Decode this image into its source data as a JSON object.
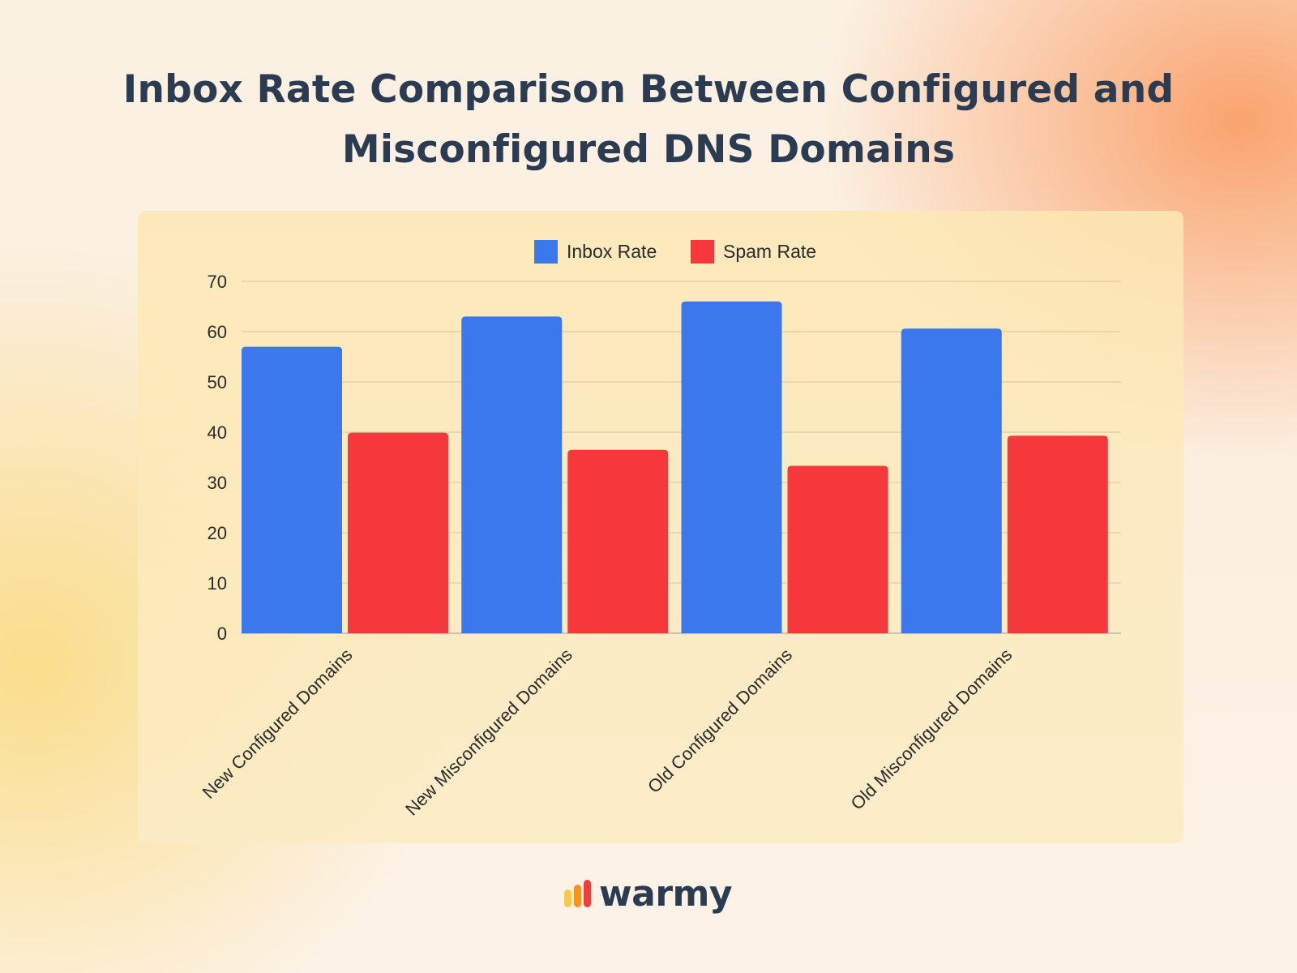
{
  "title_line1": "Inbox Rate Comparison Between Configured and",
  "title_line2": "Misconfigured DNS Domains",
  "brand": {
    "name": "warmy",
    "colors": [
      "#fbc94a",
      "#f7941d",
      "#f03e3e"
    ]
  },
  "chart_data": {
    "type": "bar",
    "categories": [
      "New Configured Domains",
      "New Misconfigured Domains",
      "Old Configured Domains",
      "Old Misconfigured Domains"
    ],
    "series": [
      {
        "name": "Inbox Rate",
        "values": [
          57,
          63,
          66,
          60.6
        ],
        "color": "#3b78ee"
      },
      {
        "name": "Spam Rate",
        "values": [
          39.9,
          36.5,
          33.3,
          39.3
        ],
        "color": "#f5383b"
      }
    ],
    "ylim": [
      0,
      70
    ],
    "yticks": [
      0,
      10,
      20,
      30,
      40,
      50,
      60,
      70
    ],
    "grid": true,
    "legend": "top-center"
  }
}
